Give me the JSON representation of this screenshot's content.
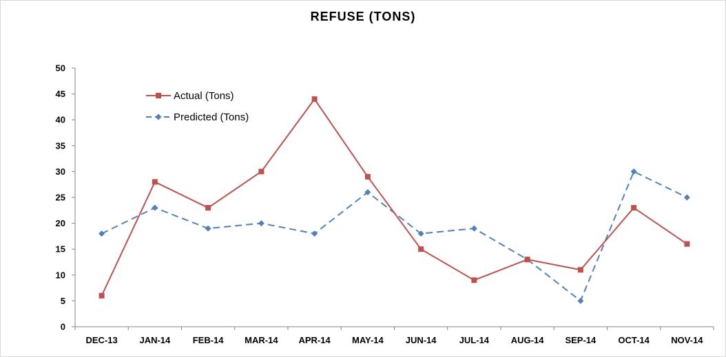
{
  "chart_data": {
    "type": "line",
    "title": "REFUSE (TONS)",
    "xlabel": "",
    "ylabel": "",
    "categories": [
      "DEC-13",
      "JAN-14",
      "FEB-14",
      "MAR-14",
      "APR-14",
      "MAY-14",
      "JUN-14",
      "JUL-14",
      "AUG-14",
      "SEP-14",
      "OCT-14",
      "NOV-14"
    ],
    "ylim": [
      0,
      50
    ],
    "yticks": [
      0,
      5,
      10,
      15,
      20,
      25,
      30,
      35,
      40,
      45,
      50
    ],
    "grid": false,
    "legend_position": "top-left",
    "series": [
      {
        "name": "Actual (Tons)",
        "color": "#C0504D",
        "marker": "square",
        "line_style": "solid",
        "values": [
          6,
          28,
          23,
          30,
          44,
          29,
          15,
          9,
          13,
          11,
          23,
          16
        ]
      },
      {
        "name": "Predicted (Tons)",
        "color": "#4F81BD",
        "marker": "diamond",
        "line_style": "dashed",
        "values": [
          18,
          23,
          19,
          20,
          18,
          26,
          18,
          19,
          13,
          5,
          30,
          25
        ]
      }
    ]
  }
}
